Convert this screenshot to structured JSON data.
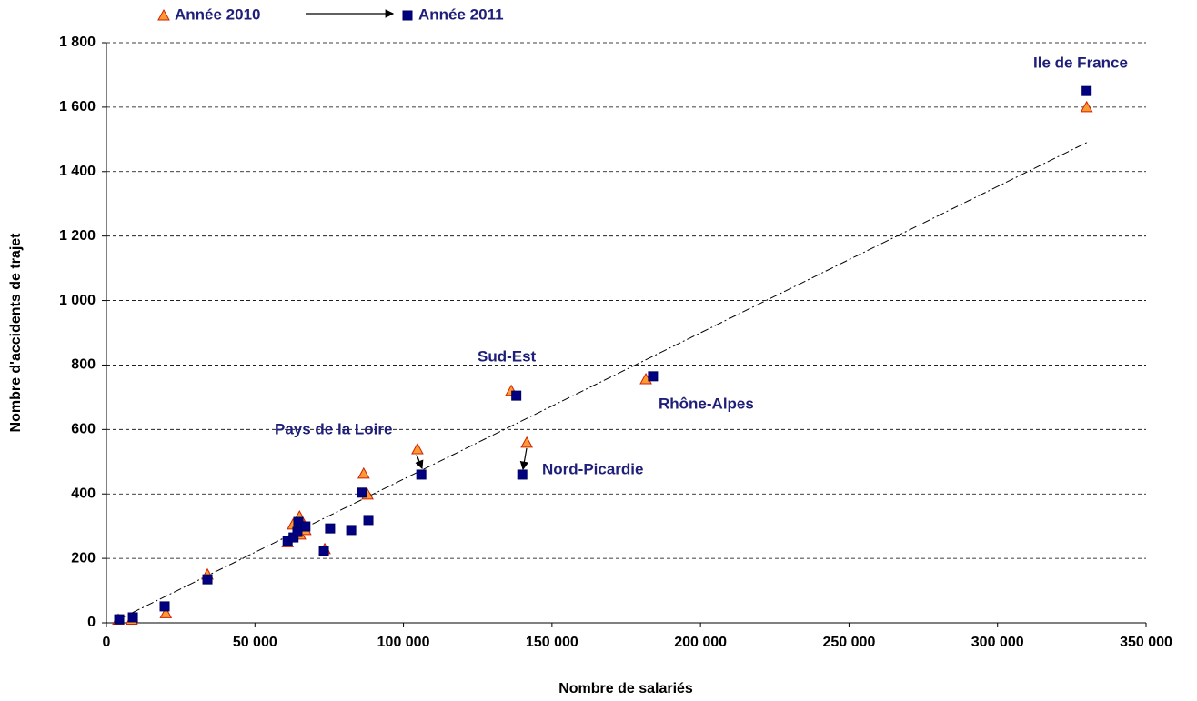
{
  "chart_data": {
    "type": "scatter",
    "x_label": "Nombre de salariés",
    "y_label": "Nombre d'accidents de trajet",
    "xlim": [
      0,
      350000
    ],
    "ylim": [
      0,
      1800
    ],
    "xticks": [
      0,
      {
        "value": 50000,
        "label": "50 000"
      },
      {
        "value": 100000,
        "label": "100 000"
      },
      {
        "value": 150000,
        "label": "150 000"
      },
      {
        "value": 200000,
        "label": "200 000"
      },
      {
        "value": 250000,
        "label": "250 000"
      },
      {
        "value": 300000,
        "label": "300 000"
      },
      {
        "value": 350000,
        "label": "350 000"
      }
    ],
    "yticks": [
      0,
      200,
      400,
      600,
      800,
      {
        "value": 1000,
        "label": "1 000"
      },
      {
        "value": 1200,
        "label": "1 200"
      },
      {
        "value": 1400,
        "label": "1 400"
      },
      {
        "value": 1600,
        "label": "1 600"
      },
      {
        "value": 1800,
        "label": "1 800"
      }
    ],
    "grid": true,
    "series": [
      {
        "name": "Année 2010",
        "marker": "triangle",
        "color": "#ff9933",
        "edge_color": "#cc2200",
        "x": [
          4000,
          8500,
          20000,
          34000,
          61000,
          62800,
          65000,
          65200,
          67000,
          73500,
          86600,
          87900,
          104700,
          136300,
          141500,
          181600,
          330000
        ],
        "values": [
          10,
          10,
          30,
          150,
          250,
          305,
          330,
          274,
          288,
          229,
          463,
          398,
          539,
          720,
          559,
          756,
          1600
        ]
      },
      {
        "name": "Année 2011",
        "marker": "square",
        "color": "#000080",
        "edge_color": "#000060",
        "x": [
          4300,
          8900,
          19600,
          34000,
          61000,
          63000,
          64300,
          64600,
          67000,
          73200,
          75300,
          82400,
          86000,
          88200,
          106000,
          138000,
          140000,
          184000,
          330000
        ],
        "values": [
          11,
          17,
          51,
          135,
          255,
          265,
          282,
          313,
          299,
          223,
          293,
          288,
          404,
          319,
          460,
          705,
          460,
          765,
          1650
        ]
      }
    ],
    "trendline": {
      "x": [
        4000,
        330000
      ],
      "values": [
        10,
        1490
      ]
    },
    "annotations": [
      "Ile de France",
      "Sud-Est",
      "Rhône-Alpes",
      "Pays de la Loire",
      "Nord-Picardie"
    ]
  }
}
